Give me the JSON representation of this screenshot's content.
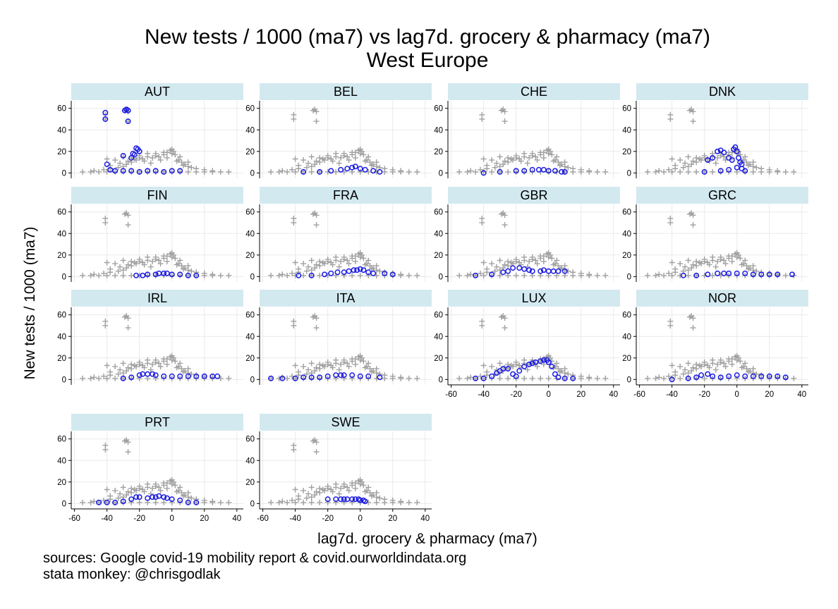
{
  "chart_data": {
    "type": "scatter",
    "title": "New tests / 1000 (ma7) vs lag7d. grocery & pharmacy (ma7)",
    "subtitle": "West Europe",
    "xlabel": "lag7d. grocery & pharmacy (ma7)",
    "ylabel": "New tests / 1000 (ma7)",
    "xlim": [
      -62,
      44
    ],
    "ylim": [
      -5,
      67
    ],
    "xticks": [
      -60,
      -40,
      -20,
      0,
      20,
      40
    ],
    "yticks": [
      0,
      20,
      40,
      60
    ],
    "grid": true,
    "background_marker": "+",
    "highlight_marker": "o",
    "colors": {
      "background": "#a0a0a0",
      "highlight": "#1a1ae6",
      "strip": "#d3e9f0",
      "grid": "#e9e9e9"
    },
    "panels": [
      {
        "name": "AUT",
        "points": [
          [
            -41,
            56
          ],
          [
            -41,
            50
          ],
          [
            -29,
            58
          ],
          [
            -28,
            59
          ],
          [
            -27,
            58
          ],
          [
            -27,
            48
          ],
          [
            -24,
            18
          ],
          [
            -23,
            17
          ],
          [
            -22,
            23
          ],
          [
            -21,
            22
          ],
          [
            -20,
            20
          ],
          [
            -25,
            14
          ],
          [
            -30,
            16
          ],
          [
            -40,
            8
          ],
          [
            -38,
            3
          ],
          [
            -35,
            2
          ],
          [
            -30,
            2
          ],
          [
            -25,
            2
          ],
          [
            -20,
            1
          ],
          [
            -15,
            2
          ],
          [
            -10,
            2
          ],
          [
            -5,
            1
          ],
          [
            0,
            2
          ],
          [
            5,
            2
          ]
        ]
      },
      {
        "name": "BEL",
        "points": [
          [
            -35,
            1
          ],
          [
            -25,
            1
          ],
          [
            -18,
            2
          ],
          [
            -12,
            3
          ],
          [
            -8,
            4
          ],
          [
            -5,
            5
          ],
          [
            -3,
            6
          ],
          [
            0,
            4
          ],
          [
            3,
            3
          ],
          [
            8,
            2
          ],
          [
            12,
            1
          ]
        ]
      },
      {
        "name": "CHE",
        "points": [
          [
            -40,
            0
          ],
          [
            -30,
            1
          ],
          [
            -20,
            2
          ],
          [
            -15,
            2
          ],
          [
            -10,
            3
          ],
          [
            -6,
            3
          ],
          [
            -3,
            3
          ],
          [
            0,
            2
          ],
          [
            4,
            2
          ],
          [
            8,
            1
          ],
          [
            10,
            1
          ]
        ]
      },
      {
        "name": "DNK",
        "points": [
          [
            -18,
            12
          ],
          [
            -15,
            14
          ],
          [
            -12,
            20
          ],
          [
            -10,
            21
          ],
          [
            -8,
            19
          ],
          [
            -5,
            14
          ],
          [
            -3,
            12
          ],
          [
            -2,
            22
          ],
          [
            -1,
            24
          ],
          [
            0,
            20
          ],
          [
            1,
            14
          ],
          [
            2,
            10
          ],
          [
            3,
            8
          ],
          [
            -20,
            1
          ],
          [
            -10,
            2
          ],
          [
            -5,
            3
          ],
          [
            0,
            5
          ],
          [
            3,
            4
          ],
          [
            5,
            2
          ]
        ]
      },
      {
        "name": "FIN",
        "points": [
          [
            -22,
            1
          ],
          [
            -18,
            1
          ],
          [
            -15,
            2
          ],
          [
            -10,
            2
          ],
          [
            -8,
            3
          ],
          [
            -5,
            3
          ],
          [
            -3,
            3
          ],
          [
            0,
            2
          ],
          [
            5,
            2
          ],
          [
            10,
            1
          ],
          [
            15,
            1
          ]
        ]
      },
      {
        "name": "FRA",
        "points": [
          [
            -38,
            1
          ],
          [
            -30,
            1
          ],
          [
            -22,
            2
          ],
          [
            -18,
            3
          ],
          [
            -14,
            4
          ],
          [
            -10,
            4
          ],
          [
            -7,
            5
          ],
          [
            -4,
            6
          ],
          [
            -2,
            6
          ],
          [
            0,
            7
          ],
          [
            2,
            6
          ],
          [
            5,
            4
          ],
          [
            8,
            3
          ],
          [
            15,
            3
          ],
          [
            20,
            2
          ]
        ]
      },
      {
        "name": "GBR",
        "points": [
          [
            -45,
            1
          ],
          [
            -35,
            2
          ],
          [
            -28,
            4
          ],
          [
            -25,
            5
          ],
          [
            -22,
            8
          ],
          [
            -18,
            8
          ],
          [
            -15,
            7
          ],
          [
            -12,
            6
          ],
          [
            -10,
            5
          ],
          [
            -5,
            5
          ],
          [
            -3,
            6
          ],
          [
            0,
            5
          ],
          [
            3,
            5
          ],
          [
            6,
            5
          ],
          [
            10,
            5
          ]
        ]
      },
      {
        "name": "GRC",
        "points": [
          [
            -33,
            1
          ],
          [
            -25,
            1
          ],
          [
            -18,
            2
          ],
          [
            -12,
            3
          ],
          [
            -8,
            3
          ],
          [
            -5,
            3
          ],
          [
            0,
            3
          ],
          [
            5,
            3
          ],
          [
            10,
            2
          ],
          [
            15,
            2
          ],
          [
            20,
            2
          ],
          [
            25,
            2
          ],
          [
            34,
            2
          ]
        ]
      },
      {
        "name": "IRL",
        "points": [
          [
            -30,
            1
          ],
          [
            -25,
            2
          ],
          [
            -20,
            4
          ],
          [
            -18,
            5
          ],
          [
            -15,
            5
          ],
          [
            -12,
            5
          ],
          [
            -10,
            4
          ],
          [
            -5,
            3
          ],
          [
            0,
            3
          ],
          [
            5,
            3
          ],
          [
            10,
            3
          ],
          [
            15,
            3
          ],
          [
            20,
            3
          ],
          [
            25,
            3
          ],
          [
            28,
            3
          ]
        ]
      },
      {
        "name": "ITA",
        "points": [
          [
            -55,
            1
          ],
          [
            -48,
            1
          ],
          [
            -40,
            1
          ],
          [
            -35,
            2
          ],
          [
            -30,
            2
          ],
          [
            -25,
            2
          ],
          [
            -20,
            3
          ],
          [
            -15,
            4
          ],
          [
            -12,
            4
          ],
          [
            -10,
            4
          ],
          [
            -5,
            4
          ],
          [
            0,
            3
          ],
          [
            5,
            3
          ],
          [
            12,
            2
          ]
        ]
      },
      {
        "name": "LUX",
        "points": [
          [
            -45,
            1
          ],
          [
            -40,
            1
          ],
          [
            -35,
            3
          ],
          [
            -32,
            6
          ],
          [
            -30,
            8
          ],
          [
            -28,
            10
          ],
          [
            -25,
            10
          ],
          [
            -22,
            5
          ],
          [
            -20,
            3
          ],
          [
            -18,
            8
          ],
          [
            -15,
            12
          ],
          [
            -12,
            14
          ],
          [
            -10,
            15
          ],
          [
            -8,
            16
          ],
          [
            -5,
            17
          ],
          [
            -3,
            18
          ],
          [
            -1,
            18
          ],
          [
            0,
            16
          ],
          [
            2,
            12
          ],
          [
            4,
            5
          ],
          [
            6,
            2
          ],
          [
            10,
            1
          ],
          [
            15,
            1
          ]
        ]
      },
      {
        "name": "NOR",
        "points": [
          [
            -40,
            0
          ],
          [
            -30,
            1
          ],
          [
            -25,
            2
          ],
          [
            -22,
            4
          ],
          [
            -18,
            5
          ],
          [
            -15,
            3
          ],
          [
            -10,
            2
          ],
          [
            -5,
            3
          ],
          [
            0,
            4
          ],
          [
            5,
            3
          ],
          [
            10,
            3
          ],
          [
            15,
            3
          ],
          [
            20,
            3
          ],
          [
            25,
            3
          ],
          [
            30,
            2
          ]
        ]
      },
      {
        "name": "PRT",
        "points": [
          [
            -45,
            1
          ],
          [
            -40,
            1
          ],
          [
            -35,
            1
          ],
          [
            -30,
            2
          ],
          [
            -25,
            4
          ],
          [
            -22,
            6
          ],
          [
            -20,
            6
          ],
          [
            -15,
            5
          ],
          [
            -12,
            6
          ],
          [
            -10,
            6
          ],
          [
            -8,
            7
          ],
          [
            -5,
            6
          ],
          [
            -3,
            5
          ],
          [
            0,
            4
          ],
          [
            5,
            3
          ],
          [
            10,
            1
          ],
          [
            15,
            1
          ]
        ]
      },
      {
        "name": "SWE",
        "points": [
          [
            -20,
            4
          ],
          [
            -15,
            4
          ],
          [
            -12,
            4
          ],
          [
            -10,
            4
          ],
          [
            -8,
            4
          ],
          [
            -5,
            4
          ],
          [
            -3,
            4
          ],
          [
            -1,
            4
          ],
          [
            0,
            3
          ],
          [
            2,
            3
          ],
          [
            3,
            2
          ]
        ]
      }
    ],
    "background_points": [
      [
        -55,
        1
      ],
      [
        -50,
        1
      ],
      [
        -45,
        1
      ],
      [
        -40,
        1
      ],
      [
        -35,
        1
      ],
      [
        -30,
        1
      ],
      [
        -25,
        1
      ],
      [
        -20,
        1
      ],
      [
        -15,
        1
      ],
      [
        -10,
        1
      ],
      [
        -5,
        1
      ],
      [
        0,
        1
      ],
      [
        5,
        1
      ],
      [
        10,
        1
      ],
      [
        15,
        1
      ],
      [
        20,
        1
      ],
      [
        25,
        1
      ],
      [
        30,
        1
      ],
      [
        35,
        1
      ],
      [
        -48,
        2
      ],
      [
        -42,
        3
      ],
      [
        -38,
        4
      ],
      [
        -33,
        5
      ],
      [
        -30,
        6
      ],
      [
        -28,
        8
      ],
      [
        -25,
        10
      ],
      [
        -22,
        12
      ],
      [
        -20,
        14
      ],
      [
        -18,
        13
      ],
      [
        -15,
        15
      ],
      [
        -12,
        14
      ],
      [
        -10,
        16
      ],
      [
        -8,
        15
      ],
      [
        -5,
        17
      ],
      [
        -3,
        19
      ],
      [
        -1,
        21
      ],
      [
        0,
        22
      ],
      [
        1,
        20
      ],
      [
        2,
        17
      ],
      [
        4,
        12
      ],
      [
        6,
        10
      ],
      [
        8,
        8
      ],
      [
        10,
        6
      ],
      [
        12,
        5
      ],
      [
        15,
        4
      ],
      [
        20,
        3
      ],
      [
        25,
        2
      ],
      [
        -40,
        13
      ],
      [
        -35,
        12
      ],
      [
        -30,
        15
      ],
      [
        -25,
        14
      ],
      [
        -20,
        16
      ],
      [
        -15,
        18
      ],
      [
        -10,
        18
      ],
      [
        -5,
        19
      ],
      [
        0,
        18
      ],
      [
        5,
        15
      ],
      [
        10,
        10
      ],
      [
        -38,
        7
      ],
      [
        -32,
        9
      ],
      [
        -27,
        11
      ],
      [
        -23,
        13
      ],
      [
        -17,
        11
      ],
      [
        -13,
        9
      ],
      [
        -7,
        12
      ],
      [
        -3,
        14
      ],
      [
        3,
        11
      ],
      [
        7,
        7
      ],
      [
        -41,
        54
      ],
      [
        -41,
        50
      ],
      [
        -29,
        58
      ],
      [
        -28,
        59
      ],
      [
        -27,
        57
      ],
      [
        -27,
        48
      ]
    ]
  }
}
